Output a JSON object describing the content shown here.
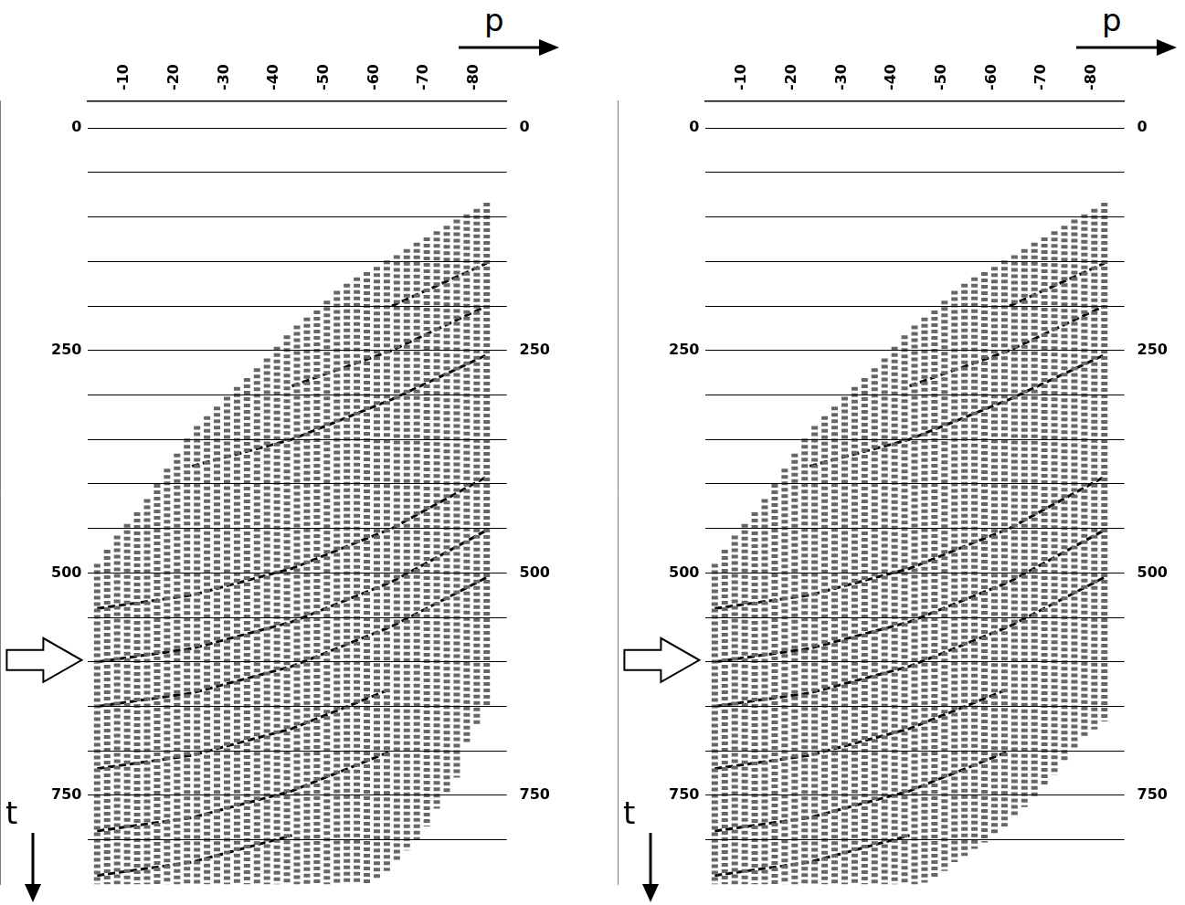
{
  "chart_data": [
    {
      "type": "line",
      "x_label": "p",
      "y_label": "t",
      "xlim": [
        -83,
        1
      ],
      "xticks": [
        -10,
        -20,
        -30,
        -40,
        -50,
        -60,
        -70,
        -80
      ],
      "ylim": [
        -30,
        850
      ],
      "yticks": [
        0,
        {
          "value": 50,
          "label": null
        },
        {
          "value": 100,
          "label": null
        },
        {
          "value": 150,
          "label": null
        },
        {
          "value": 200,
          "label": null
        },
        250,
        {
          "value": 300,
          "label": null
        },
        {
          "value": 350,
          "label": null
        },
        {
          "value": 400,
          "label": null
        },
        {
          "value": 450,
          "label": null
        },
        500,
        {
          "value": 550,
          "label": null
        },
        {
          "value": 600,
          "label": null
        },
        {
          "value": 650,
          "label": null
        },
        {
          "value": 700,
          "label": null
        },
        750,
        {
          "value": 800,
          "label": null
        }
      ],
      "grid": true,
      "arrow_t": 598,
      "traces": [
        {
          "p": -1,
          "t": [
            490,
            850
          ]
        },
        {
          "p": -3,
          "t": [
            474,
            850
          ]
        },
        {
          "p": -5,
          "t": [
            458,
            850
          ]
        },
        {
          "p": -7,
          "t": [
            445,
            850
          ]
        },
        {
          "p": -9,
          "t": [
            432,
            850
          ]
        },
        {
          "p": -11,
          "t": [
            417,
            850
          ]
        },
        {
          "p": -13,
          "t": [
            400,
            850
          ]
        },
        {
          "p": -15,
          "t": [
            383,
            850
          ]
        },
        {
          "p": -17,
          "t": [
            366,
            850
          ]
        },
        {
          "p": -19,
          "t": [
            349,
            850
          ]
        },
        {
          "p": -21,
          "t": [
            335,
            850
          ]
        },
        {
          "p": -23,
          "t": [
            324,
            850
          ]
        },
        {
          "p": -25,
          "t": [
            313,
            850
          ]
        },
        {
          "p": -27,
          "t": [
            302,
            850
          ]
        },
        {
          "p": -29,
          "t": [
            291,
            850
          ]
        },
        {
          "p": -31,
          "t": [
            281,
            850
          ]
        },
        {
          "p": -33,
          "t": [
            270,
            850
          ]
        },
        {
          "p": -35,
          "t": [
            259,
            850
          ]
        },
        {
          "p": -37,
          "t": [
            246,
            850
          ]
        },
        {
          "p": -39,
          "t": [
            233,
            850
          ]
        },
        {
          "p": -41,
          "t": [
            222,
            850
          ]
        },
        {
          "p": -43,
          "t": [
            213,
            850
          ]
        },
        {
          "p": -45,
          "t": [
            205,
            850
          ]
        },
        {
          "p": -47,
          "t": [
            194,
            850
          ]
        },
        {
          "p": -49,
          "t": [
            183,
            850
          ]
        },
        {
          "p": -51,
          "t": [
            175,
            850
          ]
        },
        {
          "p": -53,
          "t": [
            168,
            850
          ]
        },
        {
          "p": -55,
          "t": [
            162,
            850
          ]
        },
        {
          "p": -57,
          "t": [
            156,
            845
          ]
        },
        {
          "p": -59,
          "t": [
            149,
            835
          ]
        },
        {
          "p": -61,
          "t": [
            143,
            825
          ]
        },
        {
          "p": -63,
          "t": [
            136,
            812
          ]
        },
        {
          "p": -65,
          "t": [
            129,
            800
          ]
        },
        {
          "p": -67,
          "t": [
            123,
            785
          ]
        },
        {
          "p": -69,
          "t": [
            116,
            765
          ]
        },
        {
          "p": -71,
          "t": [
            110,
            750
          ]
        },
        {
          "p": -73,
          "t": [
            103,
            730
          ]
        },
        {
          "p": -75,
          "t": [
            97,
            690
          ]
        },
        {
          "p": -77,
          "t": [
            91,
            670
          ]
        },
        {
          "p": -79,
          "t": [
            84,
            650
          ]
        }
      ],
      "events": [
        {
          "p": [
            -20,
            -40,
            -60,
            -79
          ],
          "t": [
            380,
            350,
            305,
            255
          ]
        },
        {
          "p": [
            -40,
            -60,
            -79
          ],
          "t": [
            290,
            250,
            200
          ]
        },
        {
          "p": [
            -60,
            -79
          ],
          "t": [
            200,
            152
          ]
        },
        {
          "p": [
            -1,
            -20,
            -40,
            -60,
            -79
          ],
          "t": [
            540,
            525,
            495,
            450,
            392
          ]
        },
        {
          "p": [
            -1,
            -20,
            -40,
            -60,
            -79
          ],
          "t": [
            600,
            585,
            555,
            510,
            452
          ]
        },
        {
          "p": [
            -1,
            -20,
            -40,
            -60,
            -79
          ],
          "t": [
            650,
            635,
            605,
            560,
            505
          ]
        },
        {
          "p": [
            -1,
            -20,
            -40,
            -60
          ],
          "t": [
            720,
            705,
            675,
            630
          ]
        },
        {
          "p": [
            -1,
            -20,
            -40,
            -60
          ],
          "t": [
            790,
            775,
            745,
            700
          ]
        },
        {
          "p": [
            -1,
            -20,
            -40
          ],
          "t": [
            840,
            825,
            795
          ]
        }
      ]
    },
    {
      "type": "line",
      "x_label": "p",
      "y_label": "t",
      "xlim": [
        -83,
        1
      ],
      "xticks": [
        -10,
        -20,
        -30,
        -40,
        -50,
        -60,
        -70,
        -80
      ],
      "ylim": [
        -30,
        850
      ],
      "yticks": [
        0,
        {
          "value": 50,
          "label": null
        },
        {
          "value": 100,
          "label": null
        },
        {
          "value": 150,
          "label": null
        },
        {
          "value": 200,
          "label": null
        },
        250,
        {
          "value": 300,
          "label": null
        },
        {
          "value": 350,
          "label": null
        },
        {
          "value": 400,
          "label": null
        },
        {
          "value": 450,
          "label": null
        },
        500,
        {
          "value": 550,
          "label": null
        },
        {
          "value": 600,
          "label": null
        },
        {
          "value": 650,
          "label": null
        },
        {
          "value": 700,
          "label": null
        },
        750,
        {
          "value": 800,
          "label": null
        }
      ],
      "grid": true,
      "arrow_t": 598,
      "traces": [
        {
          "p": -1,
          "t": [
            490,
            850
          ]
        },
        {
          "p": -3,
          "t": [
            474,
            850
          ]
        },
        {
          "p": -5,
          "t": [
            458,
            850
          ]
        },
        {
          "p": -7,
          "t": [
            445,
            850
          ]
        },
        {
          "p": -9,
          "t": [
            432,
            850
          ]
        },
        {
          "p": -11,
          "t": [
            417,
            850
          ]
        },
        {
          "p": -13,
          "t": [
            400,
            850
          ]
        },
        {
          "p": -15,
          "t": [
            383,
            850
          ]
        },
        {
          "p": -17,
          "t": [
            366,
            850
          ]
        },
        {
          "p": -19,
          "t": [
            349,
            850
          ]
        },
        {
          "p": -21,
          "t": [
            335,
            850
          ]
        },
        {
          "p": -23,
          "t": [
            324,
            850
          ]
        },
        {
          "p": -25,
          "t": [
            313,
            850
          ]
        },
        {
          "p": -27,
          "t": [
            302,
            850
          ]
        },
        {
          "p": -29,
          "t": [
            291,
            850
          ]
        },
        {
          "p": -31,
          "t": [
            281,
            850
          ]
        },
        {
          "p": -33,
          "t": [
            270,
            850
          ]
        },
        {
          "p": -35,
          "t": [
            259,
            850
          ]
        },
        {
          "p": -37,
          "t": [
            246,
            850
          ]
        },
        {
          "p": -39,
          "t": [
            233,
            850
          ]
        },
        {
          "p": -41,
          "t": [
            222,
            850
          ]
        },
        {
          "p": -43,
          "t": [
            213,
            848
          ]
        },
        {
          "p": -45,
          "t": [
            205,
            843
          ]
        },
        {
          "p": -47,
          "t": [
            194,
            835
          ]
        },
        {
          "p": -49,
          "t": [
            183,
            825
          ]
        },
        {
          "p": -51,
          "t": [
            175,
            818
          ]
        },
        {
          "p": -53,
          "t": [
            168,
            810
          ]
        },
        {
          "p": -55,
          "t": [
            162,
            803
          ]
        },
        {
          "p": -57,
          "t": [
            156,
            795
          ]
        },
        {
          "p": -59,
          "t": [
            149,
            785
          ]
        },
        {
          "p": -61,
          "t": [
            143,
            775
          ]
        },
        {
          "p": -63,
          "t": [
            136,
            763
          ]
        },
        {
          "p": -65,
          "t": [
            129,
            751
          ]
        },
        {
          "p": -67,
          "t": [
            123,
            739
          ]
        },
        {
          "p": -69,
          "t": [
            116,
            727
          ]
        },
        {
          "p": -71,
          "t": [
            110,
            712
          ]
        },
        {
          "p": -73,
          "t": [
            103,
            698
          ]
        },
        {
          "p": -75,
          "t": [
            97,
            685
          ]
        },
        {
          "p": -77,
          "t": [
            91,
            676
          ]
        },
        {
          "p": -79,
          "t": [
            84,
            667
          ]
        }
      ],
      "events": [
        {
          "p": [
            -20,
            -40,
            -60,
            -79
          ],
          "t": [
            380,
            350,
            305,
            255
          ]
        },
        {
          "p": [
            -40,
            -60,
            -79
          ],
          "t": [
            290,
            250,
            200
          ]
        },
        {
          "p": [
            -60,
            -79
          ],
          "t": [
            200,
            152
          ]
        },
        {
          "p": [
            -1,
            -20,
            -40,
            -60,
            -79
          ],
          "t": [
            540,
            525,
            495,
            450,
            392
          ]
        },
        {
          "p": [
            -1,
            -20,
            -40,
            -60,
            -79
          ],
          "t": [
            600,
            585,
            555,
            510,
            452
          ]
        },
        {
          "p": [
            -1,
            -20,
            -40,
            -60,
            -79
          ],
          "t": [
            650,
            635,
            605,
            560,
            505
          ]
        },
        {
          "p": [
            -1,
            -20,
            -40,
            -60
          ],
          "t": [
            720,
            705,
            675,
            630
          ]
        },
        {
          "p": [
            -1,
            -20,
            -40,
            -60
          ],
          "t": [
            790,
            775,
            745,
            700
          ]
        },
        {
          "p": [
            -1,
            -20,
            -40
          ],
          "t": [
            840,
            825,
            795
          ]
        }
      ]
    }
  ]
}
